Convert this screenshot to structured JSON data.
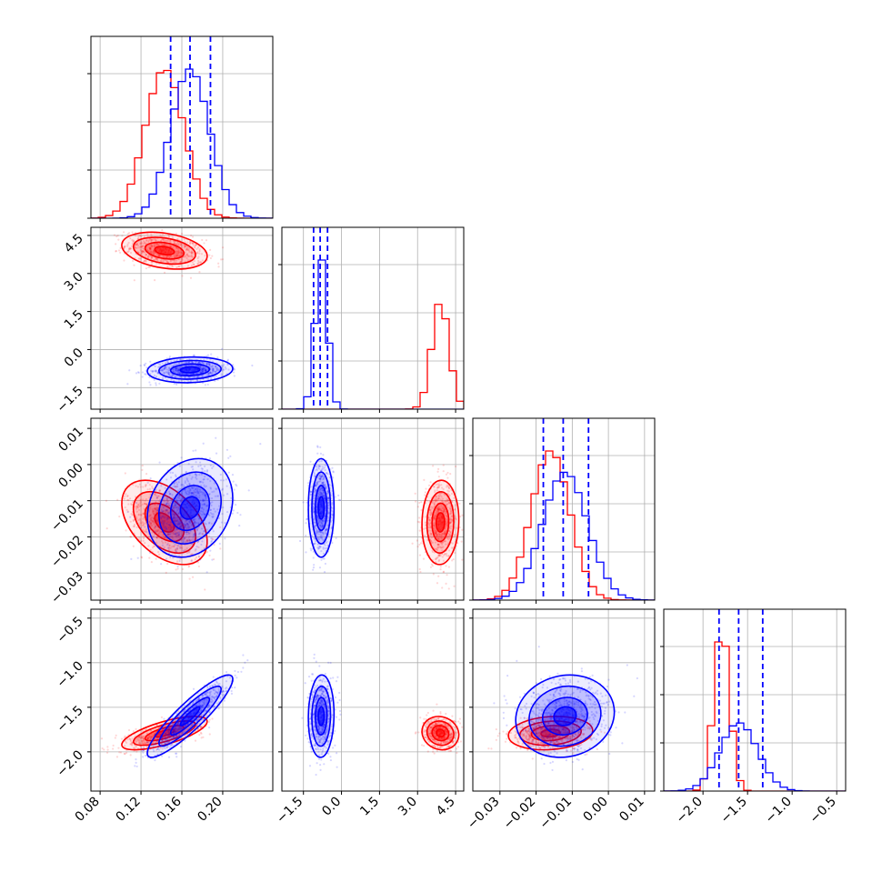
{
  "chart_data": {
    "type": "corner",
    "colors": {
      "red": "#ff0000",
      "blue": "#0000ff"
    },
    "grid": true,
    "parameters": [
      {
        "range": [
          0.071,
          0.249
        ],
        "ticks": [
          0.08,
          0.12,
          0.16,
          0.2
        ],
        "tick_labels": [
          "0.08",
          "0.12",
          "0.16",
          "0.20"
        ]
      },
      {
        "range": [
          -2.35,
          4.82
        ],
        "ticks": [
          -1.5,
          0.0,
          1.5,
          3.0,
          4.5
        ],
        "tick_labels": [
          "−1.5",
          "0.0",
          "1.5",
          "3.0",
          "4.5"
        ]
      },
      {
        "range": [
          -0.0375,
          0.0128
        ],
        "ticks": [
          -0.03,
          -0.02,
          -0.01,
          0.0,
          0.01
        ],
        "tick_labels": [
          "−0.03",
          "−0.02",
          "−0.01",
          "0.00",
          "0.01"
        ]
      },
      {
        "range": [
          -2.44,
          -0.4
        ],
        "ticks": [
          -2.0,
          -1.5,
          -1.0,
          -0.5
        ],
        "tick_labels": [
          "−2.0",
          "−1.5",
          "−1.0",
          "−0.5"
        ]
      }
    ],
    "series": [
      {
        "color": "red",
        "mean": [
          0.143,
          3.9,
          -0.016,
          -1.79
        ],
        "std": [
          0.019,
          0.33,
          0.0053,
          0.085
        ],
        "corr": [
          [
            1,
            -0.3,
            -0.45,
            0.7
          ],
          [
            -0.3,
            1,
            0.05,
            -0.1
          ],
          [
            -0.45,
            0.05,
            1,
            0.15
          ],
          [
            0.7,
            -0.1,
            0.15,
            1
          ]
        ]
      },
      {
        "color": "blue",
        "mean": [
          0.168,
          -0.8,
          -0.012,
          -1.6
        ],
        "std": [
          0.019,
          0.23,
          0.0062,
          0.21
        ],
        "corr": [
          [
            1,
            0.1,
            0.2,
            0.9
          ],
          [
            0.1,
            1,
            0.0,
            0.05
          ],
          [
            0.2,
            0.0,
            1,
            0.1
          ],
          [
            0.9,
            0.05,
            0.1,
            1
          ]
        ]
      }
    ],
    "quantile_lines": [
      {
        "color": "blue",
        "values": [
          0.149,
          0.168,
          0.188
        ]
      },
      {
        "color": "blue",
        "values": [
          -1.1,
          -0.84,
          -0.55
        ]
      },
      {
        "color": "blue",
        "values": [
          -0.018,
          -0.0125,
          -0.0055
        ]
      },
      {
        "color": "blue",
        "values": [
          -1.82,
          -1.6,
          -1.33
        ]
      }
    ]
  }
}
